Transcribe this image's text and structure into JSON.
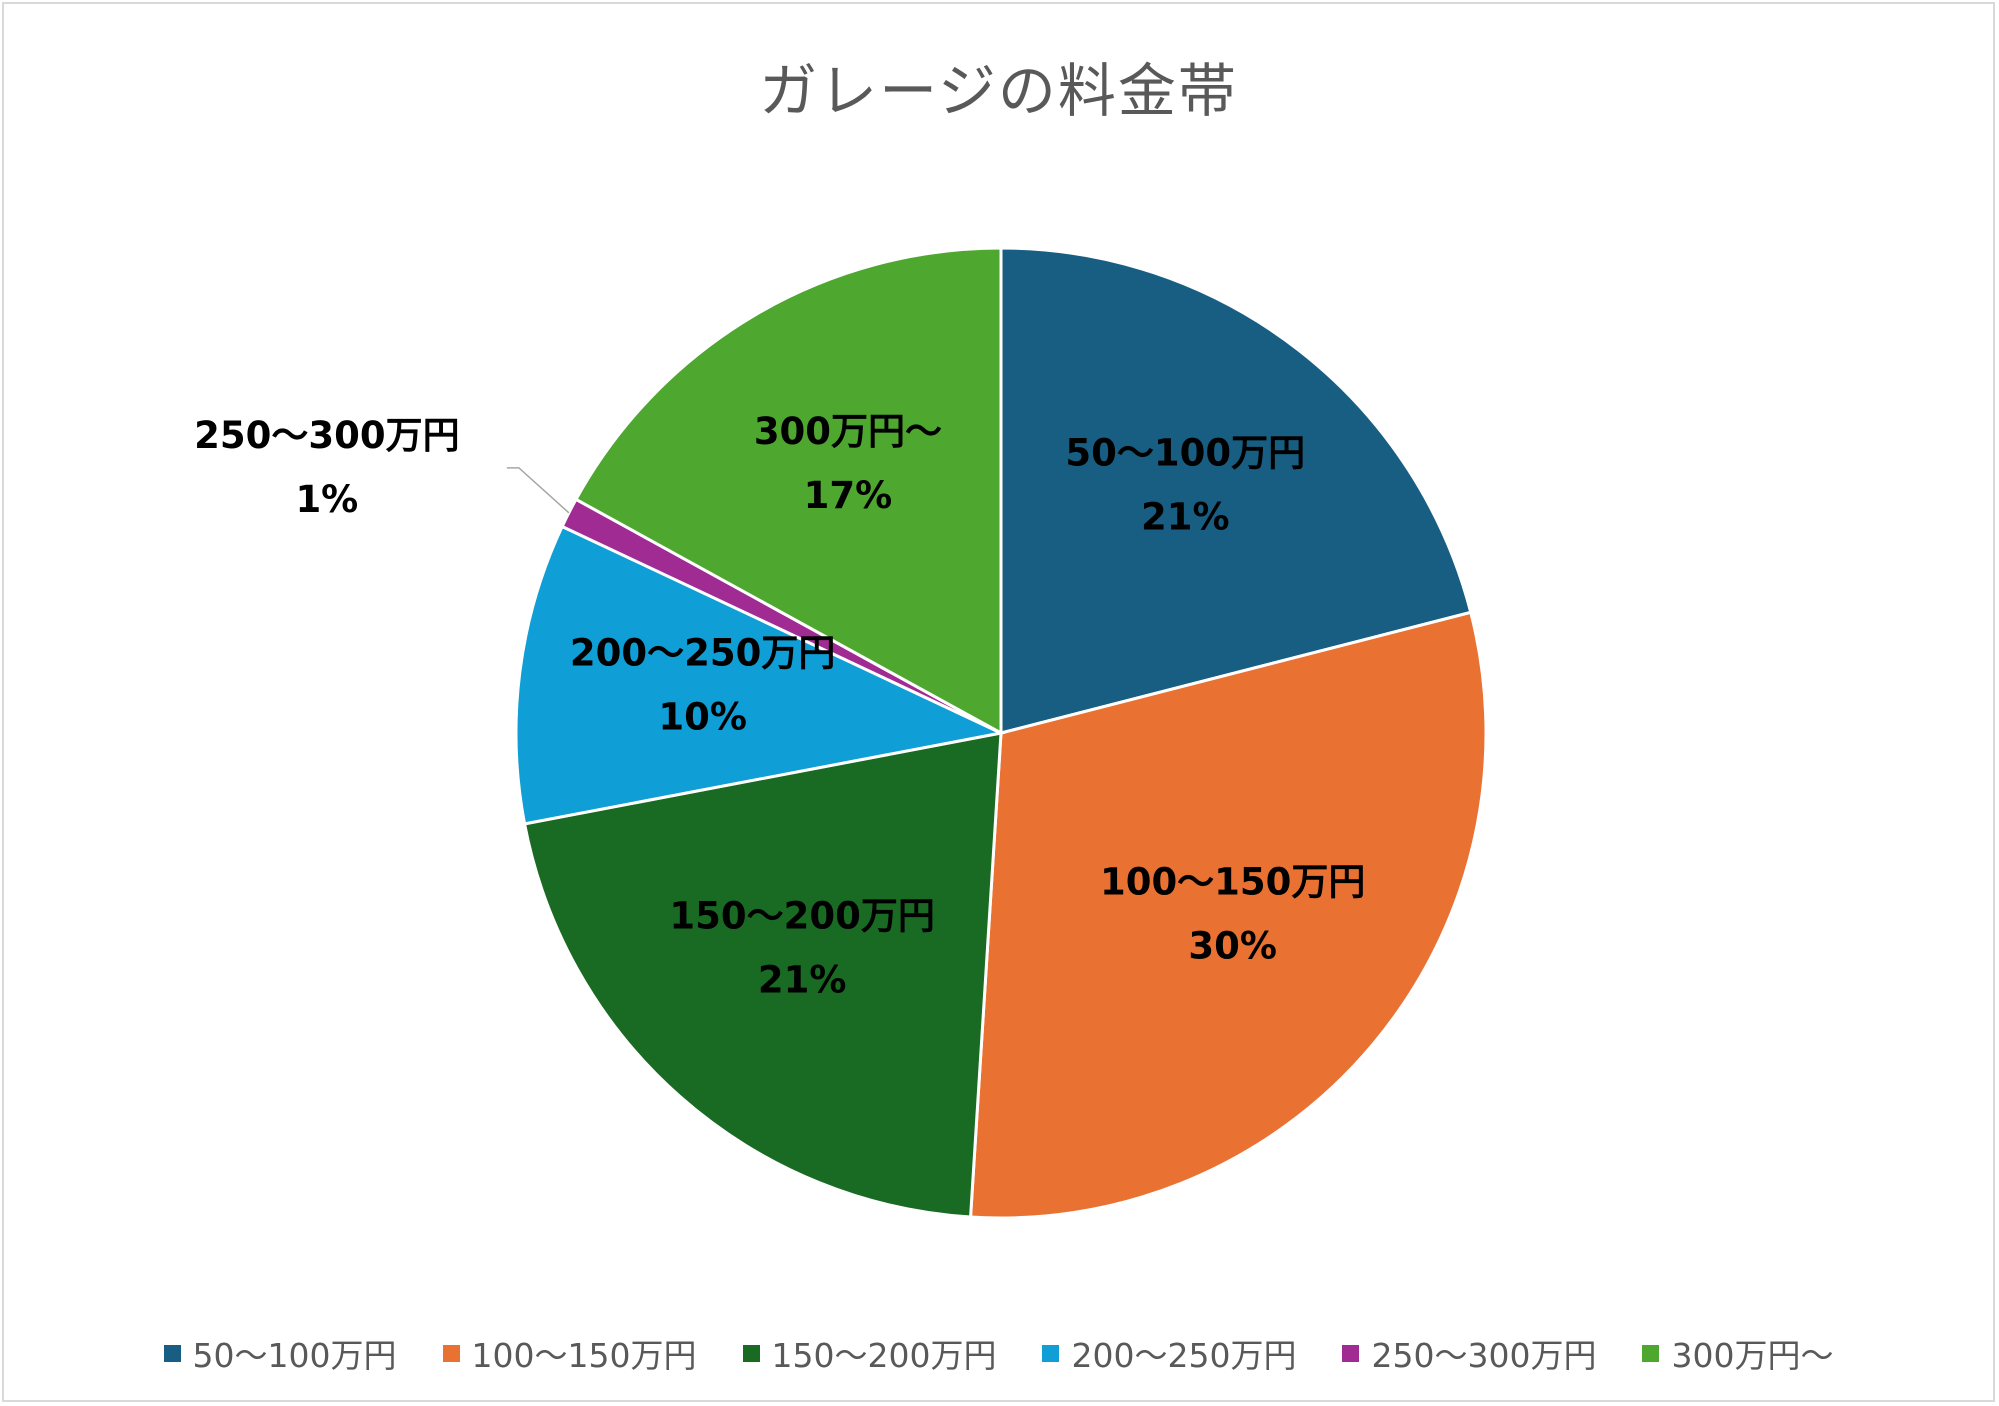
{
  "chart_data": {
    "type": "pie",
    "title": "ガレージの料金帯",
    "categories": [
      "50〜100万円",
      "100〜150万円",
      "150〜200万円",
      "200〜250万円",
      "250〜300万円",
      "300万円〜"
    ],
    "values": [
      21,
      30,
      21,
      10,
      1,
      17
    ],
    "value_labels": [
      "21%",
      "30%",
      "21%",
      "10%",
      "1%",
      "17%"
    ],
    "colors": [
      "#185e82",
      "#e97132",
      "#196b24",
      "#0f9ed5",
      "#a02b93",
      "#4ea72e"
    ],
    "start_angle": "12 o'clock, clockwise",
    "legend_position": "bottom"
  }
}
